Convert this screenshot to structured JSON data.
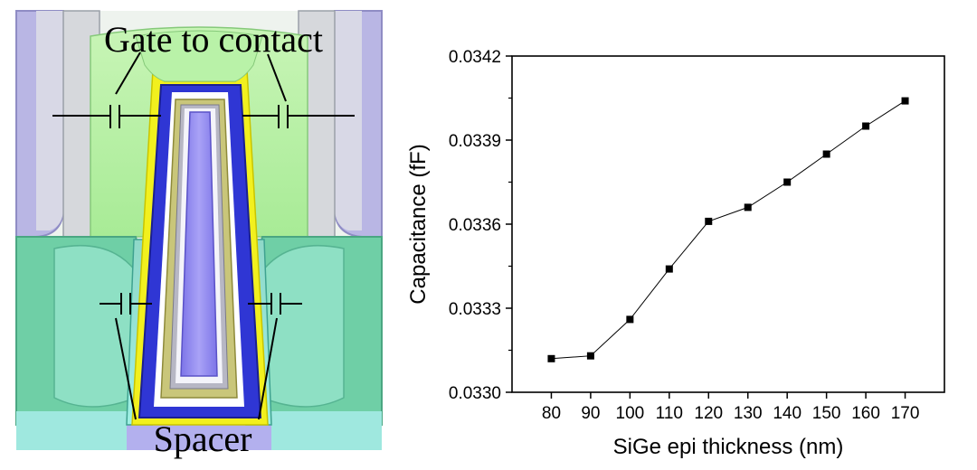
{
  "diagram": {
    "gate_label": "Gate to contact",
    "spacer_label": "Spacer",
    "colors": {
      "gate_contact_green": "#b9f2a8",
      "gate_core_purple": "#9a92f0",
      "metal_blue": "#2f36d4",
      "liner_yellow": "#f4f21c",
      "spacer_cyan": "#7fe0d2",
      "side_gray": "#c9c9d6",
      "side_purple": "#a6a3dc"
    }
  },
  "chart_data": {
    "type": "line",
    "title": "",
    "xlabel": "SiGe epi thickness (nm)",
    "ylabel": "Capacitance (fF)",
    "x": [
      80,
      90,
      100,
      110,
      120,
      130,
      140,
      150,
      160,
      170
    ],
    "series": [
      {
        "values": [
          0.03312,
          0.03313,
          0.03326,
          0.03344,
          0.03361,
          0.03366,
          0.03375,
          0.03385,
          0.03395,
          0.03404
        ]
      }
    ],
    "xlim": [
      70,
      180
    ],
    "ylim": [
      0.033,
      0.0342
    ],
    "xticks": [
      "80",
      "90",
      "100",
      "110",
      "120",
      "130",
      "140",
      "150",
      "160",
      "170"
    ],
    "yticks": [
      "0.0330",
      "0.0333",
      "0.0336",
      "0.0339",
      "0.0342"
    ],
    "marker": "square",
    "line_color": "#000000",
    "grid": false,
    "legend": "none"
  }
}
